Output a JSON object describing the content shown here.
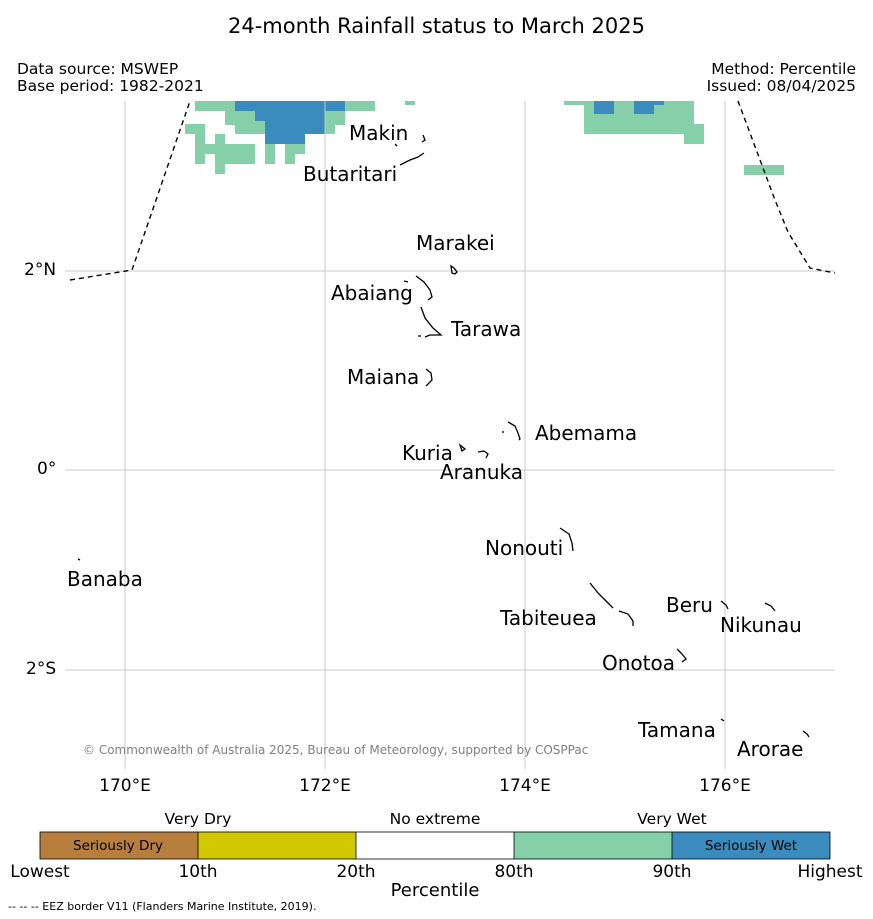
{
  "title": "24-month Rainfall status to March 2025",
  "data_source": "Data source: MSWEP",
  "base_period": "Base period: 1982-2021",
  "method": "Method: Percentile",
  "issued": "Issued: 08/04/2025",
  "axes": {
    "y_ticks": [
      "2°N",
      "0°",
      "2°S"
    ],
    "x_ticks": [
      "170°E",
      "172°E",
      "174°E",
      "176°E"
    ]
  },
  "copyright": "© Commonwealth of Australia 2025, Bureau of Meteorology, supported by COSPPac",
  "places": [
    "Makin",
    "Butaritari",
    "Marakei",
    "Abaiang",
    "Tarawa",
    "Maiana",
    "Abemama",
    "Kuria",
    "Aranuka",
    "Nonouti",
    "Banaba",
    "Beru",
    "Nikunau",
    "Tabiteuea",
    "Onotoa",
    "Tamana",
    "Arorae"
  ],
  "legend": {
    "group_labels": [
      "Very Dry",
      "No extreme",
      "Very Wet"
    ],
    "box_labels": [
      "Seriously Dry",
      "Seriously Wet"
    ],
    "ticks": [
      "Lowest",
      "10th",
      "20th",
      "80th",
      "90th",
      "Highest"
    ],
    "axis_title": "Percentile",
    "colors": {
      "seriously_dry": "#b87e3e",
      "very_dry": "#d2c800",
      "no_extreme": "#ffffff",
      "very_wet": "#85d0a8",
      "seriously_wet": "#3a8bbe"
    }
  },
  "eez_note": "--  --  -- EEZ border V11 (Flanders Marine Institute, 2019)."
}
